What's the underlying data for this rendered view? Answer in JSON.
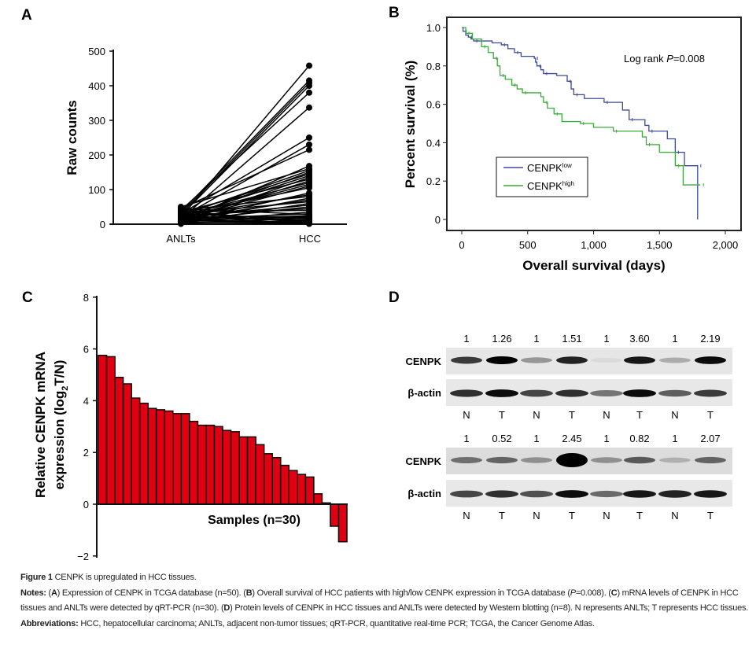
{
  "panel_labels": {
    "a": "A",
    "b": "B",
    "c": "C",
    "d": "D"
  },
  "chart_data": [
    {
      "panel": "A",
      "type": "line",
      "ylabel": "Raw counts",
      "xlabel": "",
      "categories": [
        "ANLTs",
        "HCC"
      ],
      "ylim": [
        0,
        500
      ],
      "yticks": [
        "0",
        "100",
        "200",
        "300",
        "400",
        "500"
      ],
      "grid": false,
      "color": "#000000",
      "pairs": [
        [
          20,
          458
        ],
        [
          35,
          415
        ],
        [
          30,
          408
        ],
        [
          25,
          400
        ],
        [
          40,
          380
        ],
        [
          15,
          337
        ],
        [
          30,
          250
        ],
        [
          20,
          230
        ],
        [
          45,
          215
        ],
        [
          10,
          168
        ],
        [
          50,
          160
        ],
        [
          25,
          155
        ],
        [
          15,
          150
        ],
        [
          30,
          145
        ],
        [
          20,
          140
        ],
        [
          5,
          135
        ],
        [
          35,
          130
        ],
        [
          10,
          125
        ],
        [
          25,
          120
        ],
        [
          18,
          115
        ],
        [
          12,
          110
        ],
        [
          28,
          105
        ],
        [
          8,
          90
        ],
        [
          22,
          85
        ],
        [
          40,
          80
        ],
        [
          6,
          75
        ],
        [
          15,
          70
        ],
        [
          30,
          65
        ],
        [
          3,
          60
        ],
        [
          20,
          55
        ],
        [
          10,
          50
        ],
        [
          25,
          45
        ],
        [
          35,
          40
        ],
        [
          5,
          35
        ],
        [
          15,
          30
        ],
        [
          45,
          28
        ],
        [
          8,
          25
        ],
        [
          20,
          22
        ],
        [
          12,
          20
        ],
        [
          2,
          18
        ],
        [
          30,
          15
        ],
        [
          18,
          12
        ],
        [
          4,
          10
        ],
        [
          25,
          8
        ],
        [
          10,
          6
        ],
        [
          38,
          5
        ],
        [
          6,
          4
        ],
        [
          14,
          3
        ],
        [
          1,
          2
        ],
        [
          22,
          1
        ]
      ]
    },
    {
      "panel": "B",
      "type": "line",
      "xlabel": "Overall survival (days)",
      "ylabel": "Percent survival (%)",
      "xlim": [
        0,
        2000
      ],
      "ylim": [
        0,
        1.0
      ],
      "xticks": [
        "0",
        "500",
        "1,000",
        "1,500",
        "2,000"
      ],
      "yticks": [
        "0",
        "0.2",
        "0.4",
        "0.6",
        "0.8",
        "1.0"
      ],
      "annotation": {
        "prefix": "Log rank ",
        "italic": "P",
        "suffix": "=0.008"
      },
      "legend_position": "lower-left",
      "series": [
        {
          "name": "CENPK",
          "sup": "low",
          "color": "#3c4a9b",
          "points": [
            [
              0,
              1
            ],
            [
              10,
              0.98
            ],
            [
              30,
              0.96
            ],
            [
              50,
              0.95
            ],
            [
              70,
              0.94
            ],
            [
              90,
              0.93
            ],
            [
              230,
              0.92
            ],
            [
              300,
              0.91
            ],
            [
              350,
              0.89
            ],
            [
              400,
              0.87
            ],
            [
              450,
              0.85
            ],
            [
              550,
              0.84
            ],
            [
              560,
              0.82
            ],
            [
              570,
              0.8
            ],
            [
              600,
              0.78
            ],
            [
              620,
              0.76
            ],
            [
              720,
              0.75
            ],
            [
              800,
              0.72
            ],
            [
              830,
              0.68
            ],
            [
              850,
              0.65
            ],
            [
              930,
              0.63
            ],
            [
              1080,
              0.61
            ],
            [
              1220,
              0.57
            ],
            [
              1270,
              0.52
            ],
            [
              1390,
              0.49
            ],
            [
              1420,
              0.46
            ],
            [
              1560,
              0.42
            ],
            [
              1620,
              0.35
            ],
            [
              1690,
              0.28
            ],
            [
              1790,
              0.28
            ],
            [
              1790,
              0
            ]
          ]
        },
        {
          "name": "CENPK",
          "sup": "high",
          "color": "#3aaa3a",
          "points": [
            [
              0,
              1
            ],
            [
              30,
              0.97
            ],
            [
              80,
              0.94
            ],
            [
              150,
              0.9
            ],
            [
              200,
              0.87
            ],
            [
              240,
              0.84
            ],
            [
              270,
              0.8
            ],
            [
              290,
              0.75
            ],
            [
              330,
              0.73
            ],
            [
              380,
              0.7
            ],
            [
              420,
              0.68
            ],
            [
              460,
              0.66
            ],
            [
              600,
              0.64
            ],
            [
              620,
              0.61
            ],
            [
              650,
              0.58
            ],
            [
              700,
              0.55
            ],
            [
              760,
              0.51
            ],
            [
              900,
              0.5
            ],
            [
              1000,
              0.48
            ],
            [
              1150,
              0.46
            ],
            [
              1370,
              0.43
            ],
            [
              1400,
              0.39
            ],
            [
              1500,
              0.35
            ],
            [
              1620,
              0.28
            ],
            [
              1680,
              0.18
            ],
            [
              1810,
              0.18
            ]
          ]
        }
      ]
    },
    {
      "panel": "C",
      "type": "bar",
      "ylabel_line1": "Relative CENPK mRNA",
      "ylabel_line2_prefix": "expression (log",
      "ylabel_line2_sub": "2",
      "ylabel_line2_suffix": "T/N)",
      "xlabel": "Samples (n=30)",
      "ylim": [
        -2,
        8
      ],
      "yticks": [
        "−2",
        "0",
        "2",
        "4",
        "6",
        "8"
      ],
      "color": "#e00012",
      "values": [
        5.75,
        5.7,
        4.9,
        4.65,
        4.1,
        3.9,
        3.7,
        3.65,
        3.6,
        3.5,
        3.5,
        3.2,
        3.05,
        3.05,
        3.0,
        2.85,
        2.8,
        2.6,
        2.6,
        2.3,
        1.95,
        1.8,
        1.5,
        1.3,
        1.15,
        1.05,
        0.4,
        0.05,
        -0.85,
        -1.45
      ]
    }
  ],
  "western_blot": {
    "panel": "D",
    "blots": [
      {
        "protein": "CENPK",
        "control": "β-actin",
        "ratios": [
          "1",
          "1.26",
          "1",
          "1.51",
          "1",
          "3.60",
          "1",
          "2.19"
        ],
        "lanes": [
          "N",
          "T",
          "N",
          "T",
          "N",
          "T",
          "N",
          "T"
        ]
      },
      {
        "protein": "CENPK",
        "control": "β-actin",
        "ratios": [
          "1",
          "0.52",
          "1",
          "2.45",
          "1",
          "0.82",
          "1",
          "2.07"
        ],
        "lanes": [
          "N",
          "T",
          "N",
          "T",
          "N",
          "T",
          "N",
          "T"
        ]
      }
    ]
  },
  "caption": {
    "figure_label": "Figure 1",
    "title": " CENPK is upregulated in HCC tissues.",
    "notes_label": "Notes:",
    "notes_a": "Expression of CENPK in TCGA database (n=50).",
    "notes_b": "Overall survival of HCC patients with high/low CENPK expression in TCGA database (",
    "notes_b_p": "P",
    "notes_b_end": "=0.008).",
    "notes_c": "mRNA levels of CENPK in HCC tissues and ANLTs were detected by qRT-PCR (n=30).",
    "notes_d": "Protein levels of CENPK in HCC tissues and ANLTs were detected by Western blotting (n=8). N represents ANLTs; T represents HCC tissues.",
    "abbrev_label": "Abbreviations:",
    "abbrev_text": " HCC, hepatocellular carcinoma; ANLTs, adjacent non-tumor tissues; qRT-PCR, quantitative real-time PCR; TCGA, the Cancer Genome Atlas."
  }
}
